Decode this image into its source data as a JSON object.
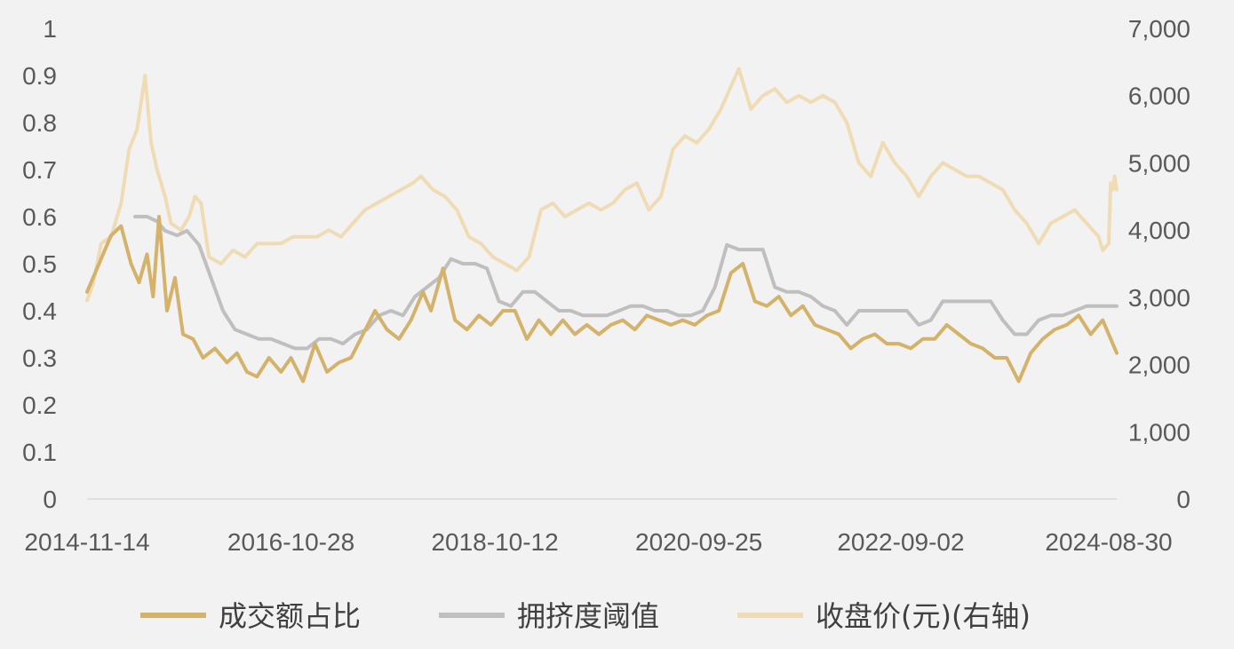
{
  "chart_data": {
    "type": "line",
    "x_axis": {
      "type": "date",
      "range": [
        "2014-11-14",
        "2024-09-27"
      ],
      "tick_labels": [
        "2014-11-14",
        "2016-10-28",
        "2018-10-12",
        "2020-09-25",
        "2022-09-02",
        "2024-08-30"
      ]
    },
    "y_left": {
      "range": [
        0,
        1
      ],
      "tick_labels": [
        "0",
        "0.1",
        "0.2",
        "0.3",
        "0.4",
        "0.5",
        "0.6",
        "0.7",
        "0.8",
        "0.9",
        "1"
      ]
    },
    "y_right": {
      "range": [
        0,
        7000
      ],
      "tick_labels": [
        "0",
        "1,000",
        "2,000",
        "3,000",
        "4,000",
        "5,000",
        "6,000",
        "7,000"
      ]
    },
    "grid": false,
    "legend_position": "bottom",
    "series": [
      {
        "name": "成交额占比",
        "axis": "left",
        "color": "#d4b26a",
        "points": [
          [
            "2014-11-14",
            0.44
          ],
          [
            "2014-12-26",
            0.5
          ],
          [
            "2015-02-06",
            0.56
          ],
          [
            "2015-03-13",
            0.58
          ],
          [
            "2015-04-17",
            0.5
          ],
          [
            "2015-05-15",
            0.46
          ],
          [
            "2015-06-12",
            0.52
          ],
          [
            "2015-07-03",
            0.43
          ],
          [
            "2015-07-24",
            0.6
          ],
          [
            "2015-08-21",
            0.4
          ],
          [
            "2015-09-18",
            0.47
          ],
          [
            "2015-10-16",
            0.35
          ],
          [
            "2015-11-20",
            0.34
          ],
          [
            "2015-12-25",
            0.3
          ],
          [
            "2016-02-05",
            0.32
          ],
          [
            "2016-03-18",
            0.29
          ],
          [
            "2016-04-22",
            0.31
          ],
          [
            "2016-05-27",
            0.27
          ],
          [
            "2016-07-01",
            0.26
          ],
          [
            "2016-08-12",
            0.3
          ],
          [
            "2016-09-23",
            0.27
          ],
          [
            "2016-10-28",
            0.3
          ],
          [
            "2016-12-09",
            0.25
          ],
          [
            "2017-01-20",
            0.33
          ],
          [
            "2017-03-03",
            0.27
          ],
          [
            "2017-04-14",
            0.29
          ],
          [
            "2017-05-26",
            0.3
          ],
          [
            "2017-07-07",
            0.35
          ],
          [
            "2017-08-18",
            0.4
          ],
          [
            "2017-09-29",
            0.36
          ],
          [
            "2017-11-10",
            0.34
          ],
          [
            "2017-12-22",
            0.38
          ],
          [
            "2018-02-02",
            0.44
          ],
          [
            "2018-03-02",
            0.4
          ],
          [
            "2018-04-13",
            0.49
          ],
          [
            "2018-05-25",
            0.38
          ],
          [
            "2018-07-06",
            0.36
          ],
          [
            "2018-08-17",
            0.39
          ],
          [
            "2018-09-28",
            0.37
          ],
          [
            "2018-11-09",
            0.4
          ],
          [
            "2018-12-21",
            0.4
          ],
          [
            "2019-02-01",
            0.34
          ],
          [
            "2019-03-15",
            0.38
          ],
          [
            "2019-04-26",
            0.35
          ],
          [
            "2019-06-07",
            0.38
          ],
          [
            "2019-07-19",
            0.35
          ],
          [
            "2019-08-30",
            0.37
          ],
          [
            "2019-10-11",
            0.35
          ],
          [
            "2019-11-22",
            0.37
          ],
          [
            "2020-01-03",
            0.38
          ],
          [
            "2020-02-14",
            0.36
          ],
          [
            "2020-03-27",
            0.39
          ],
          [
            "2020-05-08",
            0.38
          ],
          [
            "2020-06-19",
            0.37
          ],
          [
            "2020-07-31",
            0.38
          ],
          [
            "2020-09-11",
            0.37
          ],
          [
            "2020-10-23",
            0.39
          ],
          [
            "2020-12-04",
            0.4
          ],
          [
            "2021-01-15",
            0.48
          ],
          [
            "2021-02-26",
            0.5
          ],
          [
            "2021-04-09",
            0.42
          ],
          [
            "2021-05-21",
            0.41
          ],
          [
            "2021-07-02",
            0.43
          ],
          [
            "2021-08-13",
            0.39
          ],
          [
            "2021-09-24",
            0.41
          ],
          [
            "2021-11-05",
            0.37
          ],
          [
            "2021-12-17",
            0.36
          ],
          [
            "2022-01-28",
            0.35
          ],
          [
            "2022-03-11",
            0.32
          ],
          [
            "2022-04-22",
            0.34
          ],
          [
            "2022-06-03",
            0.35
          ],
          [
            "2022-07-15",
            0.33
          ],
          [
            "2022-08-26",
            0.33
          ],
          [
            "2022-10-07",
            0.32
          ],
          [
            "2022-11-18",
            0.34
          ],
          [
            "2022-12-30",
            0.34
          ],
          [
            "2023-02-10",
            0.37
          ],
          [
            "2023-03-24",
            0.35
          ],
          [
            "2023-05-05",
            0.33
          ],
          [
            "2023-06-16",
            0.32
          ],
          [
            "2023-07-28",
            0.3
          ],
          [
            "2023-09-08",
            0.3
          ],
          [
            "2023-10-20",
            0.25
          ],
          [
            "2023-12-01",
            0.31
          ],
          [
            "2024-01-12",
            0.34
          ],
          [
            "2024-02-23",
            0.36
          ],
          [
            "2024-04-05",
            0.37
          ],
          [
            "2024-05-17",
            0.39
          ],
          [
            "2024-06-28",
            0.35
          ],
          [
            "2024-08-09",
            0.38
          ],
          [
            "2024-08-30",
            0.35
          ],
          [
            "2024-09-27",
            0.31
          ]
        ]
      },
      {
        "name": "拥挤度阈值",
        "axis": "left",
        "color": "#bfbfbf",
        "points": [
          [
            "2015-05-01",
            0.6
          ],
          [
            "2015-06-12",
            0.6
          ],
          [
            "2015-07-17",
            0.59
          ],
          [
            "2015-08-14",
            0.57
          ],
          [
            "2015-09-25",
            0.56
          ],
          [
            "2015-10-30",
            0.57
          ],
          [
            "2015-12-11",
            0.54
          ],
          [
            "2016-01-22",
            0.47
          ],
          [
            "2016-03-04",
            0.4
          ],
          [
            "2016-04-15",
            0.36
          ],
          [
            "2016-05-27",
            0.35
          ],
          [
            "2016-07-08",
            0.34
          ],
          [
            "2016-08-19",
            0.34
          ],
          [
            "2016-09-30",
            0.33
          ],
          [
            "2016-11-11",
            0.32
          ],
          [
            "2016-12-23",
            0.32
          ],
          [
            "2017-02-03",
            0.34
          ],
          [
            "2017-03-17",
            0.34
          ],
          [
            "2017-04-28",
            0.33
          ],
          [
            "2017-06-09",
            0.35
          ],
          [
            "2017-07-21",
            0.36
          ],
          [
            "2017-09-01",
            0.39
          ],
          [
            "2017-10-13",
            0.4
          ],
          [
            "2017-11-24",
            0.39
          ],
          [
            "2018-01-05",
            0.43
          ],
          [
            "2018-02-16",
            0.45
          ],
          [
            "2018-03-30",
            0.47
          ],
          [
            "2018-05-11",
            0.51
          ],
          [
            "2018-06-22",
            0.5
          ],
          [
            "2018-08-03",
            0.5
          ],
          [
            "2018-09-14",
            0.49
          ],
          [
            "2018-10-26",
            0.42
          ],
          [
            "2018-12-07",
            0.41
          ],
          [
            "2019-01-18",
            0.44
          ],
          [
            "2019-03-01",
            0.44
          ],
          [
            "2019-04-12",
            0.42
          ],
          [
            "2019-05-24",
            0.4
          ],
          [
            "2019-07-05",
            0.4
          ],
          [
            "2019-08-16",
            0.39
          ],
          [
            "2019-09-27",
            0.39
          ],
          [
            "2019-11-08",
            0.39
          ],
          [
            "2019-12-20",
            0.4
          ],
          [
            "2020-01-31",
            0.41
          ],
          [
            "2020-03-13",
            0.41
          ],
          [
            "2020-04-24",
            0.4
          ],
          [
            "2020-06-05",
            0.4
          ],
          [
            "2020-07-17",
            0.39
          ],
          [
            "2020-08-28",
            0.39
          ],
          [
            "2020-10-09",
            0.4
          ],
          [
            "2020-11-20",
            0.45
          ],
          [
            "2021-01-01",
            0.54
          ],
          [
            "2021-02-12",
            0.53
          ],
          [
            "2021-03-26",
            0.53
          ],
          [
            "2021-05-07",
            0.53
          ],
          [
            "2021-06-18",
            0.45
          ],
          [
            "2021-07-30",
            0.44
          ],
          [
            "2021-09-10",
            0.44
          ],
          [
            "2021-10-22",
            0.43
          ],
          [
            "2021-12-03",
            0.41
          ],
          [
            "2022-01-14",
            0.4
          ],
          [
            "2022-02-25",
            0.37
          ],
          [
            "2022-04-08",
            0.4
          ],
          [
            "2022-05-20",
            0.4
          ],
          [
            "2022-07-01",
            0.4
          ],
          [
            "2022-08-12",
            0.4
          ],
          [
            "2022-09-23",
            0.4
          ],
          [
            "2022-11-04",
            0.37
          ],
          [
            "2022-12-16",
            0.38
          ],
          [
            "2023-01-27",
            0.42
          ],
          [
            "2023-03-10",
            0.42
          ],
          [
            "2023-04-21",
            0.42
          ],
          [
            "2023-06-02",
            0.42
          ],
          [
            "2023-07-14",
            0.42
          ],
          [
            "2023-08-25",
            0.38
          ],
          [
            "2023-10-06",
            0.35
          ],
          [
            "2023-11-17",
            0.35
          ],
          [
            "2023-12-29",
            0.38
          ],
          [
            "2024-02-09",
            0.39
          ],
          [
            "2024-03-22",
            0.39
          ],
          [
            "2024-05-03",
            0.4
          ],
          [
            "2024-06-14",
            0.41
          ],
          [
            "2024-07-26",
            0.41
          ],
          [
            "2024-08-30",
            0.41
          ],
          [
            "2024-09-27",
            0.41
          ]
        ]
      },
      {
        "name": "收盘价(元)(右轴)",
        "axis": "right",
        "color": "#efdcb4",
        "points": [
          [
            "2014-11-14",
            2950
          ],
          [
            "2014-12-05",
            3200
          ],
          [
            "2015-01-02",
            3800
          ],
          [
            "2015-02-06",
            3900
          ],
          [
            "2015-03-13",
            4400
          ],
          [
            "2015-04-10",
            5200
          ],
          [
            "2015-05-08",
            5500
          ],
          [
            "2015-06-05",
            6300
          ],
          [
            "2015-06-26",
            5300
          ],
          [
            "2015-07-17",
            4900
          ],
          [
            "2015-08-14",
            4500
          ],
          [
            "2015-09-04",
            4100
          ],
          [
            "2015-10-09",
            4000
          ],
          [
            "2015-11-06",
            4200
          ],
          [
            "2015-11-27",
            4500
          ],
          [
            "2015-12-18",
            4400
          ],
          [
            "2016-01-15",
            3600
          ],
          [
            "2016-02-26",
            3500
          ],
          [
            "2016-04-08",
            3700
          ],
          [
            "2016-05-20",
            3600
          ],
          [
            "2016-07-01",
            3800
          ],
          [
            "2016-08-12",
            3800
          ],
          [
            "2016-09-23",
            3800
          ],
          [
            "2016-11-04",
            3900
          ],
          [
            "2016-12-16",
            3900
          ],
          [
            "2017-01-27",
            3900
          ],
          [
            "2017-03-10",
            4000
          ],
          [
            "2017-04-21",
            3900
          ],
          [
            "2017-06-02",
            4100
          ],
          [
            "2017-07-14",
            4300
          ],
          [
            "2017-08-25",
            4400
          ],
          [
            "2017-10-06",
            4500
          ],
          [
            "2017-11-17",
            4600
          ],
          [
            "2017-12-29",
            4700
          ],
          [
            "2018-01-26",
            4800
          ],
          [
            "2018-03-09",
            4600
          ],
          [
            "2018-04-20",
            4500
          ],
          [
            "2018-06-01",
            4300
          ],
          [
            "2018-07-13",
            3900
          ],
          [
            "2018-08-24",
            3800
          ],
          [
            "2018-10-05",
            3600
          ],
          [
            "2018-11-16",
            3500
          ],
          [
            "2018-12-28",
            3400
          ],
          [
            "2019-02-08",
            3600
          ],
          [
            "2019-03-22",
            4300
          ],
          [
            "2019-05-03",
            4400
          ],
          [
            "2019-06-14",
            4200
          ],
          [
            "2019-07-26",
            4300
          ],
          [
            "2019-09-06",
            4400
          ],
          [
            "2019-10-18",
            4300
          ],
          [
            "2019-11-29",
            4400
          ],
          [
            "2020-01-10",
            4600
          ],
          [
            "2020-02-21",
            4700
          ],
          [
            "2020-04-03",
            4300
          ],
          [
            "2020-05-15",
            4500
          ],
          [
            "2020-06-26",
            5200
          ],
          [
            "2020-08-07",
            5400
          ],
          [
            "2020-09-18",
            5300
          ],
          [
            "2020-10-30",
            5500
          ],
          [
            "2020-12-11",
            5800
          ],
          [
            "2021-01-22",
            6200
          ],
          [
            "2021-02-12",
            6400
          ],
          [
            "2021-03-26",
            5800
          ],
          [
            "2021-05-07",
            6000
          ],
          [
            "2021-06-18",
            6100
          ],
          [
            "2021-07-30",
            5900
          ],
          [
            "2021-09-10",
            6000
          ],
          [
            "2021-10-22",
            5900
          ],
          [
            "2021-12-03",
            6000
          ],
          [
            "2022-01-14",
            5900
          ],
          [
            "2022-02-25",
            5600
          ],
          [
            "2022-04-08",
            5000
          ],
          [
            "2022-05-20",
            4800
          ],
          [
            "2022-07-01",
            5300
          ],
          [
            "2022-08-12",
            5000
          ],
          [
            "2022-09-23",
            4800
          ],
          [
            "2022-11-04",
            4500
          ],
          [
            "2022-12-16",
            4800
          ],
          [
            "2023-01-27",
            5000
          ],
          [
            "2023-03-10",
            4900
          ],
          [
            "2023-04-21",
            4800
          ],
          [
            "2023-06-02",
            4800
          ],
          [
            "2023-07-14",
            4700
          ],
          [
            "2023-08-25",
            4600
          ],
          [
            "2023-10-06",
            4300
          ],
          [
            "2023-11-17",
            4100
          ],
          [
            "2023-12-29",
            3800
          ],
          [
            "2024-02-09",
            4100
          ],
          [
            "2024-03-22",
            4200
          ],
          [
            "2024-05-03",
            4300
          ],
          [
            "2024-06-14",
            4100
          ],
          [
            "2024-07-26",
            3900
          ],
          [
            "2024-08-09",
            3700
          ],
          [
            "2024-08-30",
            3800
          ],
          [
            "2024-09-06",
            4700
          ],
          [
            "2024-09-13",
            4600
          ],
          [
            "2024-09-20",
            4800
          ],
          [
            "2024-09-27",
            4600
          ]
        ]
      }
    ]
  }
}
